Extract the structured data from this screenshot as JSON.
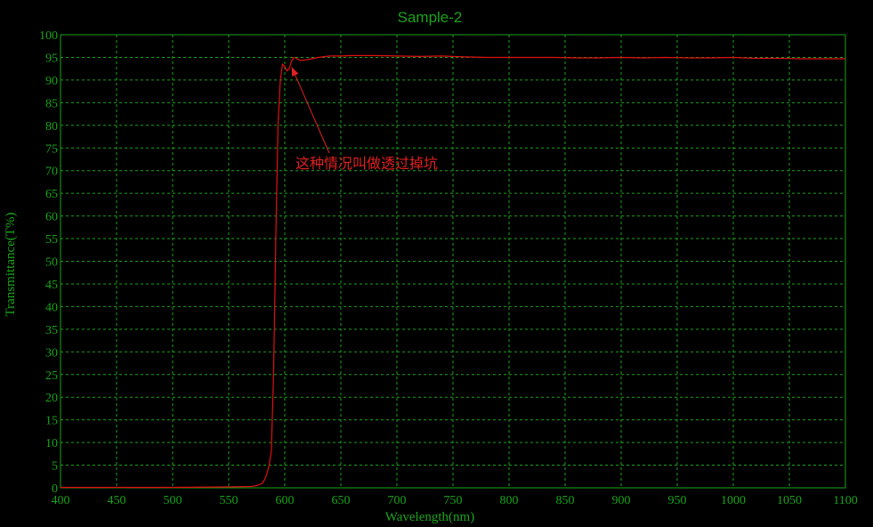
{
  "chart_data": {
    "type": "line",
    "title": "Sample-2",
    "xlabel": "Wavelength(nm)",
    "ylabel": "Transmittance(T%)",
    "xlim": [
      400,
      1100
    ],
    "ylim": [
      0,
      100
    ],
    "x_ticks": [
      400,
      450,
      500,
      550,
      600,
      650,
      700,
      750,
      800,
      850,
      900,
      950,
      1000,
      1050,
      1100
    ],
    "y_ticks": [
      0,
      5,
      10,
      15,
      20,
      25,
      30,
      35,
      40,
      45,
      50,
      55,
      60,
      65,
      70,
      75,
      80,
      85,
      90,
      95,
      100
    ],
    "grid": true,
    "series": [
      {
        "color": "#e01010",
        "x": [
          400,
          450,
          500,
          550,
          570,
          575,
          580,
          582,
          584,
          586,
          588,
          590,
          592,
          594,
          596,
          598,
          600,
          602,
          604,
          606,
          608,
          610,
          614,
          620,
          630,
          640,
          650,
          660,
          680,
          700,
          720,
          740,
          760,
          780,
          800,
          820,
          840,
          860,
          880,
          900,
          920,
          940,
          960,
          980,
          1000,
          1020,
          1040,
          1060,
          1080,
          1100
        ],
        "y": [
          0.1,
          0.1,
          0.1,
          0.2,
          0.3,
          0.5,
          1.0,
          1.8,
          3.0,
          5.0,
          8.0,
          25.0,
          55.0,
          80.0,
          90.0,
          93.5,
          93.0,
          92.0,
          92.5,
          94.2,
          95.0,
          94.8,
          94.3,
          94.5,
          95.0,
          95.3,
          95.3,
          95.4,
          95.4,
          95.3,
          95.2,
          95.3,
          95.1,
          95.0,
          95.0,
          95.0,
          95.0,
          94.9,
          94.9,
          95.0,
          94.9,
          95.0,
          94.9,
          94.9,
          95.0,
          94.8,
          94.8,
          94.7,
          94.7,
          94.7
        ]
      }
    ],
    "annotation": {
      "text": "这种情况叫做透过掉坑",
      "x": 603,
      "y": 92.5
    }
  },
  "colors": {
    "background": "#000000",
    "grid": "#1aa31a",
    "text": "#1aa31a",
    "series": "#e01010",
    "annotation": "#e02020"
  }
}
